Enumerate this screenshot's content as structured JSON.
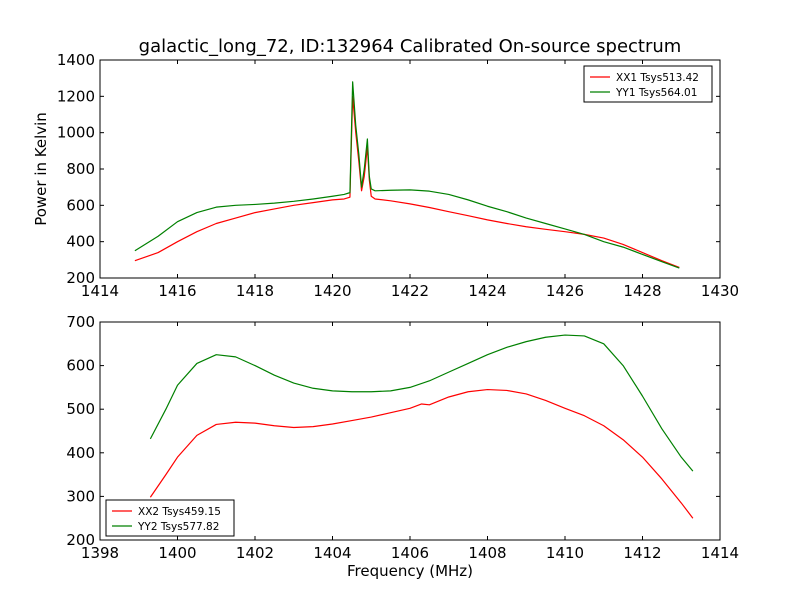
{
  "chart_data": [
    {
      "type": "line",
      "title": "galactic_long_72, ID:132964 Calibrated On-source spectrum",
      "xlabel": "",
      "ylabel": "Power in Kelvin",
      "xlim": [
        1414,
        1430
      ],
      "ylim": [
        200,
        1400
      ],
      "xticks": [
        "1414",
        "1416",
        "1418",
        "1420",
        "1422",
        "1424",
        "1426",
        "1428",
        "1430"
      ],
      "yticks": [
        "200",
        "400",
        "600",
        "800",
        "1000",
        "1200",
        "1400"
      ],
      "legend": "top-right",
      "series": [
        {
          "name": "XX1 Tsys513.42",
          "color": "#ff0000",
          "x": [
            1414.9,
            1415.5,
            1416,
            1416.5,
            1417,
            1417.5,
            1418,
            1418.5,
            1419,
            1419.5,
            1420,
            1420.3,
            1420.45,
            1420.52,
            1420.6,
            1420.68,
            1420.75,
            1420.82,
            1420.9,
            1420.95,
            1421.0,
            1421.1,
            1421.5,
            1422,
            1422.5,
            1423,
            1423.5,
            1424,
            1424.5,
            1425,
            1425.5,
            1426,
            1426.5,
            1427,
            1427.5,
            1428,
            1428.5,
            1428.95
          ],
          "y": [
            295,
            340,
            400,
            455,
            500,
            530,
            560,
            580,
            600,
            615,
            630,
            635,
            645,
            1200,
            1000,
            840,
            680,
            760,
            920,
            740,
            650,
            635,
            625,
            608,
            588,
            565,
            543,
            520,
            500,
            482,
            468,
            455,
            440,
            420,
            385,
            340,
            295,
            258
          ]
        },
        {
          "name": "YY1 Tsys564.01",
          "color": "#008000",
          "x": [
            1414.9,
            1415.5,
            1416,
            1416.5,
            1417,
            1417.5,
            1418,
            1418.5,
            1419,
            1419.5,
            1420,
            1420.3,
            1420.45,
            1420.52,
            1420.6,
            1420.68,
            1420.75,
            1420.82,
            1420.9,
            1420.95,
            1421.0,
            1421.1,
            1421.5,
            1422,
            1422.5,
            1423,
            1423.5,
            1424,
            1424.5,
            1425,
            1425.5,
            1426,
            1426.5,
            1427,
            1427.5,
            1428,
            1428.5,
            1428.95
          ],
          "y": [
            350,
            430,
            510,
            560,
            590,
            600,
            605,
            612,
            622,
            635,
            650,
            660,
            670,
            1280,
            1040,
            880,
            700,
            800,
            965,
            760,
            690,
            680,
            683,
            685,
            678,
            660,
            630,
            595,
            565,
            530,
            500,
            470,
            440,
            400,
            370,
            330,
            290,
            255
          ]
        }
      ]
    },
    {
      "type": "line",
      "title": "",
      "xlabel": "Frequency (MHz)",
      "ylabel": "",
      "xlim": [
        1398,
        1414
      ],
      "ylim": [
        200,
        700
      ],
      "xticks": [
        "1398",
        "1400",
        "1402",
        "1404",
        "1406",
        "1408",
        "1410",
        "1412",
        "1414"
      ],
      "yticks": [
        "200",
        "300",
        "400",
        "500",
        "600",
        "700"
      ],
      "legend": "bottom-left",
      "series": [
        {
          "name": "XX2 Tsys459.15",
          "color": "#ff0000",
          "x": [
            1399.3,
            1399.7,
            1400,
            1400.5,
            1401,
            1401.5,
            1402,
            1402.5,
            1403,
            1403.5,
            1404,
            1404.5,
            1405,
            1405.5,
            1406,
            1406.3,
            1406.5,
            1407,
            1407.5,
            1408,
            1408.5,
            1409,
            1409.5,
            1410,
            1410.5,
            1411,
            1411.5,
            1412,
            1412.5,
            1413,
            1413.3
          ],
          "y": [
            298,
            350,
            390,
            440,
            465,
            470,
            468,
            462,
            458,
            460,
            466,
            474,
            482,
            492,
            502,
            512,
            510,
            528,
            540,
            545,
            543,
            535,
            520,
            502,
            485,
            462,
            430,
            390,
            340,
            285,
            250
          ]
        },
        {
          "name": "YY2 Tsys577.82",
          "color": "#008000",
          "x": [
            1399.3,
            1399.7,
            1400,
            1400.5,
            1401,
            1401.5,
            1402,
            1402.5,
            1403,
            1403.5,
            1404,
            1404.5,
            1405,
            1405.5,
            1406,
            1406.5,
            1407,
            1407.5,
            1408,
            1408.5,
            1409,
            1409.5,
            1410,
            1410.5,
            1411,
            1411.5,
            1412,
            1412.5,
            1413,
            1413.3
          ],
          "y": [
            432,
            500,
            555,
            605,
            625,
            620,
            600,
            578,
            560,
            548,
            542,
            540,
            540,
            542,
            550,
            565,
            585,
            605,
            625,
            642,
            655,
            665,
            670,
            668,
            650,
            600,
            530,
            455,
            390,
            358
          ]
        }
      ]
    }
  ]
}
